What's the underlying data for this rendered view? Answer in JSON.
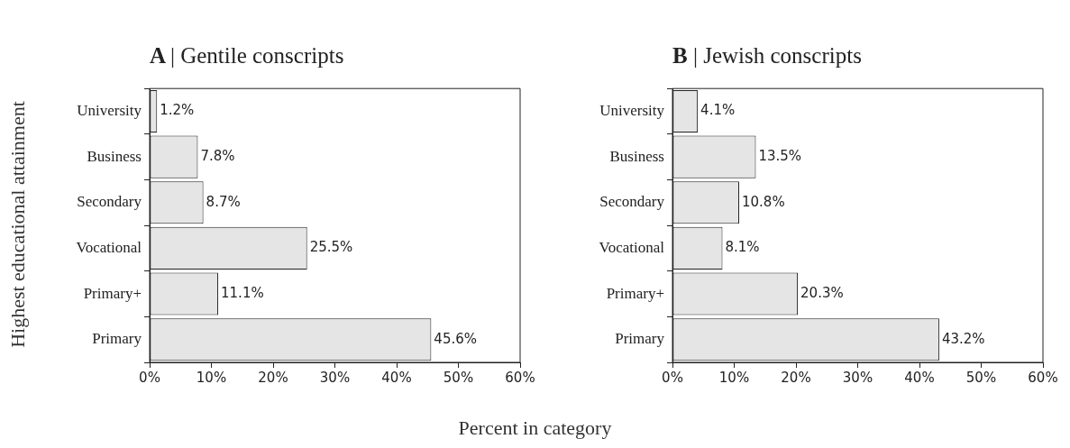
{
  "chart_data": [
    {
      "type": "bar",
      "orientation": "horizontal",
      "title": "A | Gentile conscripts",
      "ylabel": "Highest educational attainment",
      "xlabel": "Percent in category",
      "categories": [
        "University",
        "Business",
        "Secondary",
        "Vocational",
        "Primary+",
        "Primary"
      ],
      "values": [
        1.2,
        7.8,
        8.7,
        25.5,
        11.1,
        45.6
      ],
      "value_labels": [
        "1.2%",
        "7.8%",
        "8.7%",
        "25.5%",
        "11.1%",
        "45.6%"
      ],
      "color": "#e5e5e5",
      "xlim": [
        0,
        60
      ],
      "xticks": [
        {
          "value": 0,
          "label": "0%"
        },
        {
          "value": 10,
          "label": "10%"
        },
        {
          "value": 20,
          "label": "20%"
        },
        {
          "value": 30,
          "label": "30%"
        },
        {
          "value": 40,
          "label": "40%"
        },
        {
          "value": 50,
          "label": "50%"
        },
        {
          "value": 60,
          "label": "60%"
        }
      ]
    },
    {
      "type": "bar",
      "orientation": "horizontal",
      "title": "B | Jewish conscripts",
      "categories": [
        "University",
        "Business",
        "Secondary",
        "Vocational",
        "Primary+",
        "Primary"
      ],
      "values": [
        4.1,
        13.5,
        10.8,
        8.1,
        20.3,
        43.2
      ],
      "value_labels": [
        "4.1%",
        "13.5%",
        "10.8%",
        "8.1%",
        "20.3%",
        "43.2%"
      ],
      "color": "#e5e5e5",
      "xlim": [
        0,
        60
      ],
      "xticks": [
        {
          "value": 0,
          "label": "0%"
        },
        {
          "value": 10,
          "label": "10%"
        },
        {
          "value": 20,
          "label": "20%"
        },
        {
          "value": 30,
          "label": "30%"
        },
        {
          "value": 40,
          "label": "40%"
        },
        {
          "value": 50,
          "label": "50%"
        },
        {
          "value": 60,
          "label": "60%"
        }
      ]
    }
  ]
}
